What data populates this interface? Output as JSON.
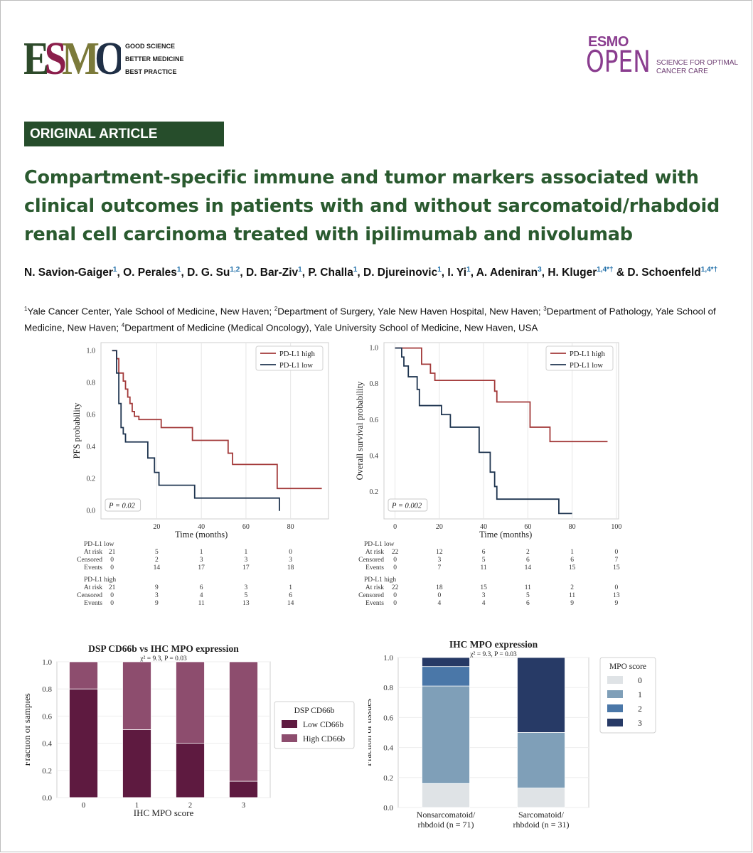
{
  "header": {
    "esmo_logo_text": "ESMO",
    "esmo_tagline": [
      "GOOD SCIENCE",
      "BETTER MEDICINE",
      "BEST PRACTICE"
    ],
    "journal_esmo": "ESMO",
    "journal_open": "OPEN",
    "journal_tagline": [
      "SCIENCE FOR OPTIMAL",
      "CANCER CARE"
    ]
  },
  "article": {
    "section": "ORIGINAL ARTICLE",
    "title": "Compartment-specific immune and tumor markers associated with clinical outcomes in patients with and without sarcomatoid/rhabdoid renal cell carcinoma treated with ipilimumab and nivolumab",
    "authors": [
      {
        "name": "N. Savion-Gaiger",
        "aff": "1",
        "sep": ", "
      },
      {
        "name": "O. Perales",
        "aff": "1",
        "sep": ", "
      },
      {
        "name": "D. G. Su",
        "aff": "1,2",
        "sep": ", "
      },
      {
        "name": "D. Bar-Ziv",
        "aff": "1",
        "sep": ", "
      },
      {
        "name": "P. Challa",
        "aff": "1",
        "sep": ", "
      },
      {
        "name": "D. Djureinovic",
        "aff": "1",
        "sep": ", "
      },
      {
        "name": "I. Yi",
        "aff": "1",
        "sep": ", "
      },
      {
        "name": "A. Adeniran",
        "aff": "3",
        "sep": ", "
      },
      {
        "name": "H. Kluger",
        "aff": "1,4*†",
        "sep": " & "
      },
      {
        "name": "D. Schoenfeld",
        "aff": "1,4*†",
        "sep": ""
      }
    ],
    "affiliations": [
      {
        "num": "1",
        "text": "Yale Cancer Center, Yale School of Medicine, New Haven; "
      },
      {
        "num": "2",
        "text": "Department of Surgery, Yale New Haven Hospital, New Haven; "
      },
      {
        "num": "3",
        "text": "Department of Pathology, Yale School of Medicine, New Haven; "
      },
      {
        "num": "4",
        "text": "Department of Medicine (Medical Oncology), Yale University School of Medicine, New Haven, USA"
      }
    ]
  },
  "colors": {
    "green_dark": "#264d2b",
    "title_green": "#2a5a2f",
    "pdl1_high": "#a33a3a",
    "pdl1_low": "#1f3550",
    "cd66b_low": "#5e1a40",
    "cd66b_high": "#8d4d6e",
    "mpo_0": "#dfe3e6",
    "mpo_1": "#7f9fb8",
    "mpo_2": "#4a77a8",
    "mpo_3": "#273a66"
  },
  "chart_data": [
    {
      "type": "line",
      "ylabel": "PFS probability",
      "xlabel": "Time (months)",
      "xlim": [
        -5,
        97
      ],
      "ylim": [
        -0.05,
        1.05
      ],
      "xticks": [
        20,
        40,
        60,
        80
      ],
      "yticks": [
        0.0,
        0.2,
        0.4,
        0.6,
        0.8,
        1.0
      ],
      "legend_position": "top-right",
      "annotation": "P = 0.02",
      "series": [
        {
          "name": "PD-L1 high",
          "steps": [
            [
              0,
              1.0
            ],
            [
              2,
              0.95
            ],
            [
              3,
              0.86
            ],
            [
              5,
              0.81
            ],
            [
              6,
              0.76
            ],
            [
              7,
              0.71
            ],
            [
              8,
              0.67
            ],
            [
              9,
              0.62
            ],
            [
              10,
              0.59
            ],
            [
              12,
              0.57
            ],
            [
              22,
              0.52
            ],
            [
              36,
              0.44
            ],
            [
              52,
              0.36
            ],
            [
              54,
              0.29
            ],
            [
              74,
              0.14
            ],
            [
              94,
              0.14
            ]
          ]
        },
        {
          "name": "PD-L1 low",
          "steps": [
            [
              0,
              1.0
            ],
            [
              2,
              0.86
            ],
            [
              3,
              0.67
            ],
            [
              4,
              0.52
            ],
            [
              5,
              0.48
            ],
            [
              6,
              0.43
            ],
            [
              16,
              0.33
            ],
            [
              19,
              0.24
            ],
            [
              21,
              0.16
            ],
            [
              37,
              0.08
            ],
            [
              75,
              0.08
            ],
            [
              75,
              0.0
            ]
          ]
        }
      ],
      "risk_table": [
        {
          "group": "PD-L1 low",
          "rows": [
            {
              "label": "At risk",
              "values": [
                "21",
                "5",
                "1",
                "1",
                "0"
              ]
            },
            {
              "label": "Censored",
              "values": [
                "0",
                "2",
                "3",
                "3",
                "3"
              ]
            },
            {
              "label": "Events",
              "values": [
                "0",
                "14",
                "17",
                "17",
                "18"
              ]
            }
          ]
        },
        {
          "group": "PD-L1 high",
          "rows": [
            {
              "label": "At risk",
              "values": [
                "21",
                "9",
                "6",
                "3",
                "1"
              ]
            },
            {
              "label": "Censored",
              "values": [
                "0",
                "3",
                "4",
                "5",
                "6"
              ]
            },
            {
              "label": "Events",
              "values": [
                "0",
                "9",
                "11",
                "13",
                "14"
              ]
            }
          ]
        }
      ]
    },
    {
      "type": "line",
      "ylabel": "Overall survival probability",
      "xlabel": "Time (months)",
      "xlim": [
        -5,
        101
      ],
      "ylim": [
        0.05,
        1.03
      ],
      "xticks": [
        0,
        20,
        40,
        60,
        80,
        100
      ],
      "yticks": [
        0.2,
        0.4,
        0.6,
        0.8,
        1.0
      ],
      "legend_position": "top-right",
      "annotation": "P = 0.002",
      "series": [
        {
          "name": "PD-L1 high",
          "steps": [
            [
              0,
              1.0
            ],
            [
              12,
              0.91
            ],
            [
              16,
              0.86
            ],
            [
              18,
              0.82
            ],
            [
              45,
              0.76
            ],
            [
              46,
              0.7
            ],
            [
              61,
              0.56
            ],
            [
              70,
              0.48
            ],
            [
              96,
              0.48
            ]
          ]
        },
        {
          "name": "PD-L1 low",
          "steps": [
            [
              0,
              1.0
            ],
            [
              3,
              0.95
            ],
            [
              4,
              0.9
            ],
            [
              6,
              0.84
            ],
            [
              10,
              0.77
            ],
            [
              11,
              0.68
            ],
            [
              21,
              0.63
            ],
            [
              25,
              0.56
            ],
            [
              38,
              0.42
            ],
            [
              43,
              0.31
            ],
            [
              45,
              0.23
            ],
            [
              46,
              0.16
            ],
            [
              74,
              0.08
            ],
            [
              80,
              0.08
            ]
          ]
        }
      ],
      "risk_table": [
        {
          "group": "PD-L1 low",
          "rows": [
            {
              "label": "At risk",
              "values": [
                "22",
                "12",
                "6",
                "2",
                "1",
                "0"
              ]
            },
            {
              "label": "Censored",
              "values": [
                "0",
                "3",
                "5",
                "6",
                "6",
                "7"
              ]
            },
            {
              "label": "Events",
              "values": [
                "0",
                "7",
                "11",
                "14",
                "15",
                "15"
              ]
            }
          ]
        },
        {
          "group": "PD-L1 high",
          "rows": [
            {
              "label": "At risk",
              "values": [
                "22",
                "18",
                "15",
                "11",
                "2",
                "0"
              ]
            },
            {
              "label": "Censored",
              "values": [
                "0",
                "0",
                "3",
                "5",
                "11",
                "13"
              ]
            },
            {
              "label": "Events",
              "values": [
                "0",
                "4",
                "4",
                "6",
                "9",
                "9"
              ]
            }
          ]
        }
      ]
    },
    {
      "type": "bar",
      "stacked": true,
      "title": "DSP CD66b vs IHC MPO expression",
      "subtitle": "χ² = 9.3, P = 0.03",
      "xlabel": "IHC MPO score",
      "ylabel": "Fraction of samples",
      "categories": [
        "0",
        "1",
        "2",
        "3"
      ],
      "ylim": [
        0,
        1.0
      ],
      "yticks": [
        0.0,
        0.2,
        0.4,
        0.6,
        0.8,
        1.0
      ],
      "legend_title": "DSP CD66b",
      "legend_position": "right",
      "series": [
        {
          "name": "Low CD66b",
          "values": [
            0.8,
            0.5,
            0.4,
            0.12
          ]
        },
        {
          "name": "High CD66b",
          "values": [
            0.2,
            0.5,
            0.6,
            0.88
          ]
        }
      ]
    },
    {
      "type": "bar",
      "stacked": true,
      "title": "IHC MPO expression",
      "subtitle": "χ² = 9.3, P = 0.03",
      "ylabel": "Fraction of tissues",
      "categories": [
        "Nonsarcomatoid/\nrhbdoid (n = 71)",
        "Sarcomatoid/\nrhbdoid (n = 31)"
      ],
      "ylim": [
        0,
        1.0
      ],
      "yticks": [
        0.0,
        0.2,
        0.4,
        0.6,
        0.8,
        1.0
      ],
      "legend_title": "MPO score",
      "legend_position": "right",
      "series": [
        {
          "name": "0",
          "values": [
            0.16,
            0.13
          ]
        },
        {
          "name": "1",
          "values": [
            0.65,
            0.37
          ]
        },
        {
          "name": "2",
          "values": [
            0.13,
            0.0
          ]
        },
        {
          "name": "3",
          "values": [
            0.06,
            0.5
          ]
        }
      ]
    }
  ]
}
